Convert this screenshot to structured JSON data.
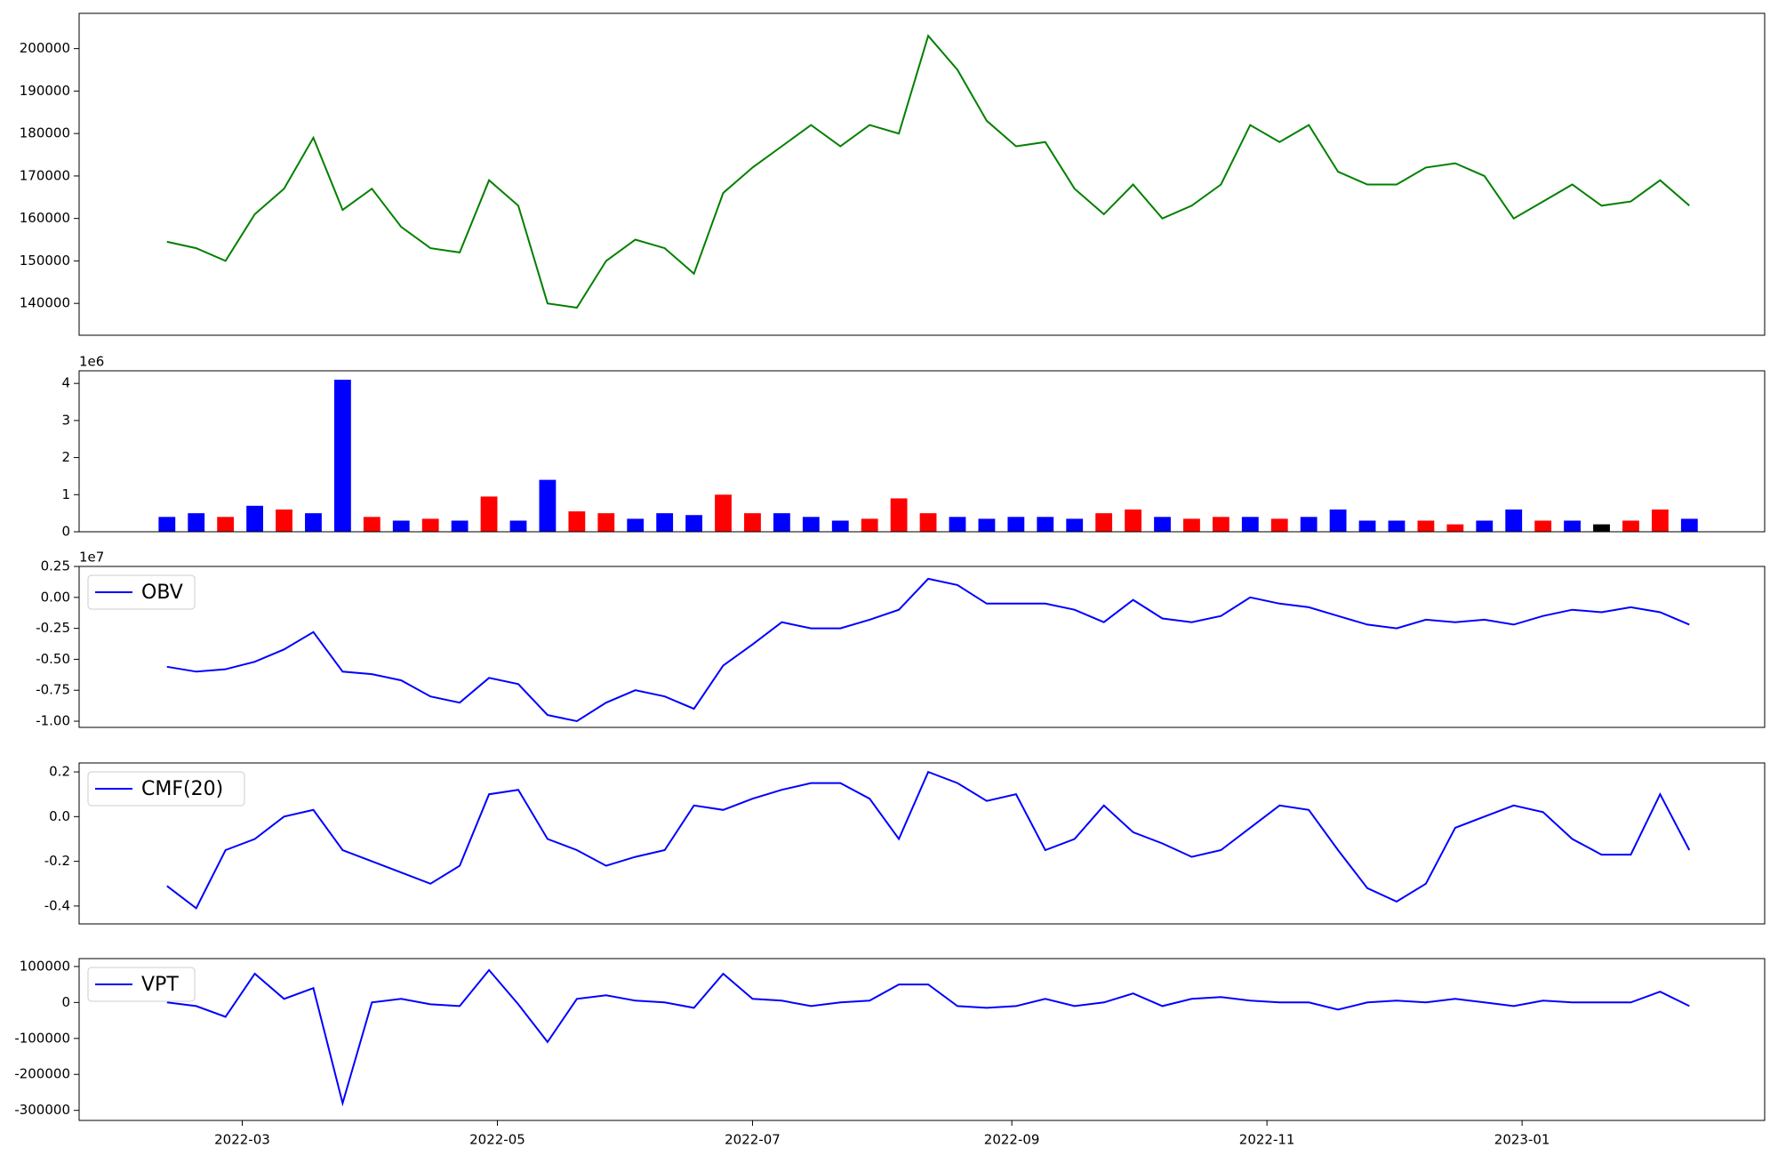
{
  "chart_data": [
    {
      "type": "line",
      "color": "green",
      "x": [
        "2022-02-11",
        "2022-02-18",
        "2022-02-25",
        "2022-03-04",
        "2022-03-11",
        "2022-03-18",
        "2022-03-25",
        "2022-04-01",
        "2022-04-08",
        "2022-04-15",
        "2022-04-22",
        "2022-04-29",
        "2022-05-06",
        "2022-05-13",
        "2022-05-20",
        "2022-05-27",
        "2022-06-03",
        "2022-06-10",
        "2022-06-17",
        "2022-06-24",
        "2022-07-01",
        "2022-07-08",
        "2022-07-15",
        "2022-07-22",
        "2022-07-29",
        "2022-08-05",
        "2022-08-12",
        "2022-08-19",
        "2022-08-26",
        "2022-09-02",
        "2022-09-09",
        "2022-09-16",
        "2022-09-23",
        "2022-09-30",
        "2022-10-07",
        "2022-10-14",
        "2022-10-21",
        "2022-10-28",
        "2022-11-04",
        "2022-11-11",
        "2022-11-18",
        "2022-11-25",
        "2022-12-02",
        "2022-12-09",
        "2022-12-16",
        "2022-12-23",
        "2022-12-30",
        "2023-01-06",
        "2023-01-13",
        "2023-01-20",
        "2023-01-27",
        "2023-02-03",
        "2023-02-10"
      ],
      "values": [
        154500,
        153000,
        150000,
        161000,
        167000,
        179000,
        162000,
        167000,
        158000,
        153000,
        152000,
        169000,
        163000,
        140000,
        139000,
        150000,
        155000,
        153000,
        147000,
        166000,
        172000,
        177000,
        182000,
        177000,
        182000,
        180000,
        203000,
        195000,
        183000,
        177000,
        178000,
        167000,
        161000,
        168000,
        160000,
        163000,
        168000,
        182000,
        178000,
        182000,
        171000,
        168000,
        168000,
        172000,
        173000,
        170000,
        160000,
        164000,
        168000,
        163000,
        164000,
        169000,
        163000
      ],
      "xlim": [
        "2022-01-21",
        "2023-02-28"
      ],
      "ylim": [
        132500,
        208300
      ],
      "yticks": [
        140000,
        150000,
        160000,
        170000,
        180000,
        190000,
        200000
      ]
    },
    {
      "type": "bar",
      "offset_label": "1e6",
      "x": [
        "2022-02-11",
        "2022-02-18",
        "2022-02-25",
        "2022-03-04",
        "2022-03-11",
        "2022-03-18",
        "2022-03-25",
        "2022-04-01",
        "2022-04-08",
        "2022-04-15",
        "2022-04-22",
        "2022-04-29",
        "2022-05-06",
        "2022-05-13",
        "2022-05-20",
        "2022-05-27",
        "2022-06-03",
        "2022-06-10",
        "2022-06-17",
        "2022-06-24",
        "2022-07-01",
        "2022-07-08",
        "2022-07-15",
        "2022-07-22",
        "2022-07-29",
        "2022-08-05",
        "2022-08-12",
        "2022-08-19",
        "2022-08-26",
        "2022-09-02",
        "2022-09-09",
        "2022-09-16",
        "2022-09-23",
        "2022-09-30",
        "2022-10-07",
        "2022-10-14",
        "2022-10-21",
        "2022-10-28",
        "2022-11-04",
        "2022-11-11",
        "2022-11-18",
        "2022-11-25",
        "2022-12-02",
        "2022-12-09",
        "2022-12-16",
        "2022-12-23",
        "2022-12-30",
        "2023-01-06",
        "2023-01-13",
        "2023-01-20",
        "2023-01-27",
        "2023-02-03",
        "2023-02-10"
      ],
      "values": [
        0.4,
        0.5,
        0.4,
        0.7,
        0.6,
        0.5,
        4.1,
        0.4,
        0.3,
        0.35,
        0.3,
        0.95,
        0.3,
        1.4,
        0.55,
        0.5,
        0.35,
        0.5,
        0.45,
        1.0,
        0.5,
        0.5,
        0.4,
        0.3,
        0.35,
        0.9,
        0.5,
        0.4,
        0.35,
        0.4,
        0.4,
        0.35,
        0.5,
        0.6,
        0.4,
        0.35,
        0.4,
        0.4,
        0.35,
        0.4,
        0.6,
        0.3,
        0.3,
        0.3,
        0.2,
        0.3,
        0.6,
        0.3,
        0.3,
        0.2,
        0.3,
        0.6,
        0.35
      ],
      "colors": [
        "blue",
        "blue",
        "red",
        "blue",
        "red",
        "blue",
        "blue",
        "red",
        "blue",
        "red",
        "blue",
        "red",
        "blue",
        "blue",
        "red",
        "red",
        "blue",
        "blue",
        "blue",
        "red",
        "red",
        "blue",
        "blue",
        "blue",
        "red",
        "red",
        "red",
        "blue",
        "blue",
        "blue",
        "blue",
        "blue",
        "red",
        "red",
        "blue",
        "red",
        "red",
        "blue",
        "red",
        "blue",
        "blue",
        "blue",
        "blue",
        "red",
        "red",
        "blue",
        "blue",
        "red",
        "blue",
        "black",
        "red",
        "red",
        "blue"
      ],
      "xlim": [
        "2022-01-21",
        "2023-02-28"
      ],
      "ylim": [
        0,
        4.34
      ],
      "yticks": [
        0,
        1,
        2,
        3,
        4
      ]
    },
    {
      "type": "line",
      "offset_label": "1e7",
      "series": [
        {
          "name": "OBV",
          "color": "blue",
          "values": [
            -0.56,
            -0.6,
            -0.58,
            -0.52,
            -0.42,
            -0.28,
            -0.6,
            -0.62,
            -0.67,
            -0.8,
            -0.85,
            -0.65,
            -0.7,
            -0.95,
            -1.0,
            -0.85,
            -0.75,
            -0.8,
            -0.9,
            -0.55,
            -0.38,
            -0.2,
            -0.25,
            -0.25,
            -0.18,
            -0.1,
            0.15,
            0.1,
            -0.05,
            -0.05,
            -0.05,
            -0.1,
            -0.2,
            -0.02,
            -0.17,
            -0.2,
            -0.15,
            0.0,
            -0.05,
            -0.08,
            -0.15,
            -0.22,
            -0.25,
            -0.18,
            -0.2,
            -0.18,
            -0.22,
            -0.15,
            -0.1,
            -0.12,
            -0.08,
            -0.12,
            -0.22
          ]
        }
      ],
      "x": [
        "2022-02-11",
        "2022-02-18",
        "2022-02-25",
        "2022-03-04",
        "2022-03-11",
        "2022-03-18",
        "2022-03-25",
        "2022-04-01",
        "2022-04-08",
        "2022-04-15",
        "2022-04-22",
        "2022-04-29",
        "2022-05-06",
        "2022-05-13",
        "2022-05-20",
        "2022-05-27",
        "2022-06-03",
        "2022-06-10",
        "2022-06-17",
        "2022-06-24",
        "2022-07-01",
        "2022-07-08",
        "2022-07-15",
        "2022-07-22",
        "2022-07-29",
        "2022-08-05",
        "2022-08-12",
        "2022-08-19",
        "2022-08-26",
        "2022-09-02",
        "2022-09-09",
        "2022-09-16",
        "2022-09-23",
        "2022-09-30",
        "2022-10-07",
        "2022-10-14",
        "2022-10-21",
        "2022-10-28",
        "2022-11-04",
        "2022-11-11",
        "2022-11-18",
        "2022-11-25",
        "2022-12-02",
        "2022-12-09",
        "2022-12-16",
        "2022-12-23",
        "2022-12-30",
        "2023-01-06",
        "2023-01-13",
        "2023-01-20",
        "2023-01-27",
        "2023-02-03",
        "2023-02-10"
      ],
      "xlim": [
        "2022-01-21",
        "2023-02-28"
      ],
      "ylim": [
        -1.05,
        0.25
      ],
      "yticks": [
        {
          "value": -1,
          "label": "-1.00"
        },
        -0.75,
        {
          "value": -0.5,
          "label": "-0.50"
        },
        -0.25,
        {
          "value": 0,
          "label": "0.00"
        },
        0.25
      ],
      "legend": "upper left"
    },
    {
      "type": "line",
      "series": [
        {
          "name": "CMF(20)",
          "color": "blue",
          "values": [
            -0.31,
            -0.41,
            -0.15,
            -0.1,
            0.0,
            0.03,
            -0.15,
            -0.2,
            -0.25,
            -0.3,
            -0.22,
            0.1,
            0.12,
            -0.1,
            -0.15,
            -0.22,
            -0.18,
            -0.15,
            0.05,
            0.03,
            0.08,
            0.12,
            0.15,
            0.15,
            0.08,
            -0.1,
            0.2,
            0.15,
            0.07,
            0.1,
            -0.15,
            -0.1,
            0.05,
            -0.07,
            -0.12,
            -0.18,
            -0.15,
            -0.05,
            0.05,
            0.03,
            -0.15,
            -0.32,
            -0.38,
            -0.3,
            -0.05,
            0.0,
            0.05,
            0.02,
            -0.1,
            -0.17,
            -0.17,
            0.1,
            -0.15
          ]
        }
      ],
      "x": [
        "2022-02-11",
        "2022-02-18",
        "2022-02-25",
        "2022-03-04",
        "2022-03-11",
        "2022-03-18",
        "2022-03-25",
        "2022-04-01",
        "2022-04-08",
        "2022-04-15",
        "2022-04-22",
        "2022-04-29",
        "2022-05-06",
        "2022-05-13",
        "2022-05-20",
        "2022-05-27",
        "2022-06-03",
        "2022-06-10",
        "2022-06-17",
        "2022-06-24",
        "2022-07-01",
        "2022-07-08",
        "2022-07-15",
        "2022-07-22",
        "2022-07-29",
        "2022-08-05",
        "2022-08-12",
        "2022-08-19",
        "2022-08-26",
        "2022-09-02",
        "2022-09-09",
        "2022-09-16",
        "2022-09-23",
        "2022-09-30",
        "2022-10-07",
        "2022-10-14",
        "2022-10-21",
        "2022-10-28",
        "2022-11-04",
        "2022-11-11",
        "2022-11-18",
        "2022-11-25",
        "2022-12-02",
        "2022-12-09",
        "2022-12-16",
        "2022-12-23",
        "2022-12-30",
        "2023-01-06",
        "2023-01-13",
        "2023-01-20",
        "2023-01-27",
        "2023-02-03",
        "2023-02-10"
      ],
      "xlim": [
        "2022-01-21",
        "2023-02-28"
      ],
      "ylim": [
        -0.48,
        0.24
      ],
      "yticks": [
        -0.4,
        -0.2,
        {
          "value": 0,
          "label": "0.0"
        },
        0.2
      ],
      "legend": "upper left"
    },
    {
      "type": "line",
      "series": [
        {
          "name": "VPT",
          "color": "blue",
          "values": [
            0,
            -10000,
            -40000,
            80000,
            10000,
            40000,
            -280000,
            0,
            10000,
            -5000,
            -10000,
            90000,
            -5000,
            -110000,
            10000,
            20000,
            5000,
            0,
            -15000,
            80000,
            10000,
            5000,
            -10000,
            0,
            5000,
            50000,
            50000,
            -10000,
            -15000,
            -10000,
            10000,
            -10000,
            0,
            25000,
            -10000,
            10000,
            15000,
            5000,
            0,
            0,
            -20000,
            0,
            5000,
            0,
            10000,
            0,
            -10000,
            5000,
            0,
            0,
            0,
            30000,
            -10000
          ]
        }
      ],
      "x": [
        "2022-02-11",
        "2022-02-18",
        "2022-02-25",
        "2022-03-04",
        "2022-03-11",
        "2022-03-18",
        "2022-03-25",
        "2022-04-01",
        "2022-04-08",
        "2022-04-15",
        "2022-04-22",
        "2022-04-29",
        "2022-05-06",
        "2022-05-13",
        "2022-05-20",
        "2022-05-27",
        "2022-06-03",
        "2022-06-10",
        "2022-06-17",
        "2022-06-24",
        "2022-07-01",
        "2022-07-08",
        "2022-07-15",
        "2022-07-22",
        "2022-07-29",
        "2022-08-05",
        "2022-08-12",
        "2022-08-19",
        "2022-08-26",
        "2022-09-02",
        "2022-09-09",
        "2022-09-16",
        "2022-09-23",
        "2022-09-30",
        "2022-10-07",
        "2022-10-14",
        "2022-10-21",
        "2022-10-28",
        "2022-11-04",
        "2022-11-11",
        "2022-11-18",
        "2022-11-25",
        "2022-12-02",
        "2022-12-09",
        "2022-12-16",
        "2022-12-23",
        "2022-12-30",
        "2023-01-06",
        "2023-01-13",
        "2023-01-20",
        "2023-01-27",
        "2023-02-03",
        "2023-02-10"
      ],
      "xlim": [
        "2022-01-21",
        "2023-02-28"
      ],
      "ylim": [
        -328000,
        122000
      ],
      "yticks": [
        -300000,
        -200000,
        -100000,
        0,
        100000
      ],
      "xticks": [
        "2022-03",
        "2022-05",
        "2022-07",
        "2022-09",
        "2022-11",
        "2023-01"
      ],
      "legend": "upper left"
    }
  ]
}
